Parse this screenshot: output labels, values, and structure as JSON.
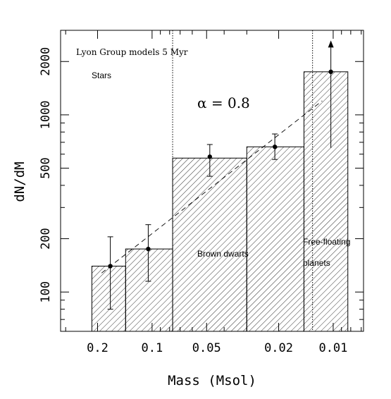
{
  "chart_data": {
    "type": "bar",
    "x_scale": "log",
    "y_scale": "log",
    "x_reversed": true,
    "xlabel": "Mass (Msol)",
    "ylabel": "dN/dM",
    "xlim": [
      0.32,
      0.0068
    ],
    "ylim": [
      60,
      3000
    ],
    "x_ticks": [
      {
        "value": 0.2,
        "label": "0.2"
      },
      {
        "value": 0.1,
        "label": "0.1"
      },
      {
        "value": 0.05,
        "label": "0.05"
      },
      {
        "value": 0.02,
        "label": "0.02"
      },
      {
        "value": 0.01,
        "label": "0.01"
      }
    ],
    "y_ticks": [
      {
        "value": 100,
        "label": "100"
      },
      {
        "value": 200,
        "label": "200"
      },
      {
        "value": 500,
        "label": "500"
      },
      {
        "value": 1000,
        "label": "1000"
      },
      {
        "value": 2000,
        "label": "2000"
      }
    ],
    "histogram_bins": [
      {
        "m_high": 0.215,
        "m_low": 0.14,
        "value": 140
      },
      {
        "m_high": 0.14,
        "m_low": 0.077,
        "value": 175
      },
      {
        "m_high": 0.077,
        "m_low": 0.03,
        "value": 570
      },
      {
        "m_high": 0.03,
        "m_low": 0.0145,
        "value": 660
      },
      {
        "m_high": 0.0145,
        "m_low": 0.0083,
        "value": 1750
      }
    ],
    "points": [
      {
        "mass": 0.17,
        "value": 140,
        "err_low": 80,
        "err_high": 205
      },
      {
        "mass": 0.105,
        "value": 175,
        "err_low": 115,
        "err_high": 240
      },
      {
        "mass": 0.048,
        "value": 580,
        "err_low": 450,
        "err_high": 680
      },
      {
        "mass": 0.021,
        "value": 660,
        "err_low": 560,
        "err_high": 780
      },
      {
        "mass": 0.0103,
        "value": 1750,
        "err_low": 650,
        "err_high": 2400,
        "arrow": "up"
      }
    ],
    "fit_line": {
      "label": "α = 0.8",
      "from": {
        "mass": 0.19,
        "value": 128
      },
      "to": {
        "mass": 0.0115,
        "value": 1200
      }
    },
    "boundaries": [
      0.077,
      0.013
    ],
    "annotations": {
      "model": "Lyon Group models 5 Myr",
      "stars": "Stars",
      "brown_dwarfs": "Brown dwarts",
      "ffp_line1": "Free-floating",
      "ffp_line2": "planets"
    }
  }
}
